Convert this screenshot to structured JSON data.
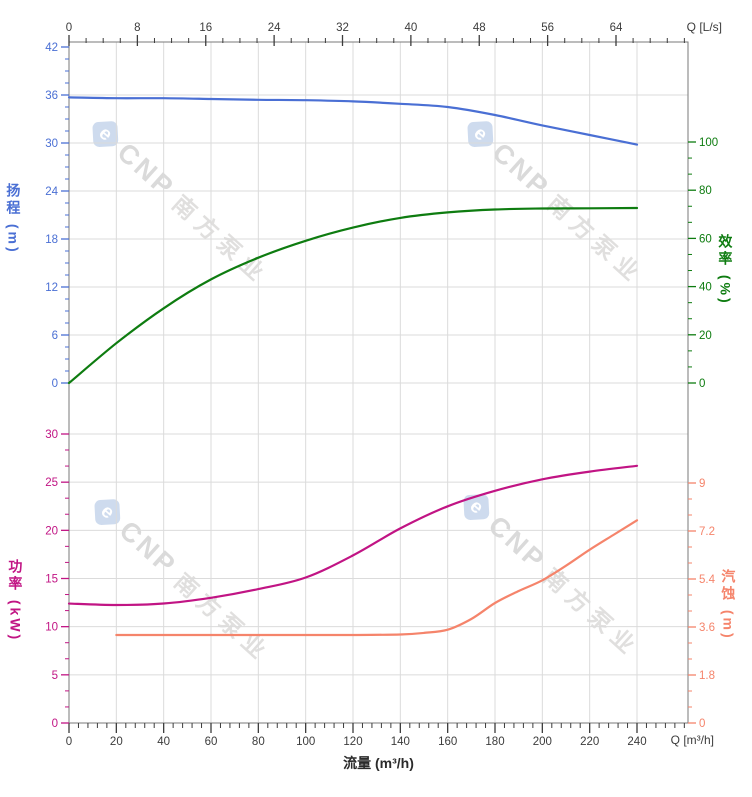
{
  "watermark": {
    "logo_char": "e",
    "brand": "CNP",
    "company": "南方泵业"
  },
  "chart_data": [
    {
      "type": "line",
      "title": "",
      "x_top": {
        "label": "Q [L/s]",
        "ticks": [
          0,
          8,
          16,
          24,
          32,
          40,
          48,
          56,
          64
        ],
        "minor_step": 2,
        "range": [
          0,
          72.4
        ]
      },
      "x_bottom": {
        "label": "Q [m³/h]",
        "axis_title": "流量 (m³/h)",
        "ticks": [
          0,
          20,
          40,
          60,
          80,
          100,
          120,
          140,
          160,
          180,
          200,
          220,
          240
        ],
        "minor_step": 4,
        "range": [
          0,
          261.5
        ]
      },
      "y_left": {
        "label": "扬程 (m)",
        "color": "#4a6fd4",
        "ticks": [
          0,
          6,
          12,
          18,
          24,
          30,
          36,
          42
        ],
        "minor_step": 1.5,
        "range": [
          0,
          42
        ]
      },
      "y_right": {
        "label": "效率 (%)",
        "color": "#0e7c10",
        "ticks": [
          0,
          20,
          40,
          60,
          80,
          100
        ],
        "minor_step": 6.667,
        "range": [
          0,
          100
        ]
      },
      "grid": true,
      "legend": "none",
      "series": [
        {
          "id": "head-curve",
          "name": "扬程",
          "axis": "left",
          "color": "#4a6fd4",
          "x": [
            0,
            20,
            40,
            60,
            80,
            100,
            120,
            140,
            160,
            180,
            200,
            220,
            240
          ],
          "y": [
            35.7,
            35.6,
            35.6,
            35.5,
            35.4,
            35.35,
            35.2,
            34.9,
            34.5,
            33.5,
            32.2,
            31.0,
            29.8
          ]
        },
        {
          "id": "efficiency-curve",
          "name": "效率",
          "axis": "right",
          "color": "#0e7c10",
          "x": [
            0,
            20,
            40,
            60,
            80,
            100,
            120,
            140,
            160,
            180,
            200,
            220,
            240
          ],
          "y": [
            0,
            16.5,
            31,
            43,
            52,
            59,
            64.5,
            68.5,
            70.8,
            72,
            72.4,
            72.5,
            72.6
          ]
        }
      ]
    },
    {
      "type": "line",
      "title": "",
      "y_left": {
        "label": "功率 (kW)",
        "color": "#c11484",
        "ticks": [
          0,
          5,
          10,
          15,
          20,
          25,
          30
        ],
        "minor_step": 1.667,
        "range": [
          0,
          30
        ]
      },
      "y_right": {
        "label": "汽蚀 (m)",
        "color": "#f5846b",
        "ticks": [
          0,
          1.8,
          3.6,
          5.4,
          7.2,
          9
        ],
        "minor_step": 0.6,
        "range": [
          0,
          9
        ]
      },
      "grid": true,
      "legend": "none",
      "series": [
        {
          "id": "power-curve",
          "name": "功率",
          "axis": "left",
          "color": "#c11484",
          "x": [
            0,
            20,
            40,
            60,
            80,
            100,
            120,
            140,
            160,
            180,
            200,
            220,
            240
          ],
          "y": [
            12.4,
            12.25,
            12.4,
            13.0,
            13.9,
            15.1,
            17.4,
            20.2,
            22.5,
            24.1,
            25.3,
            26.1,
            26.7
          ]
        },
        {
          "id": "npshr-curve",
          "name": "汽蚀",
          "axis": "right",
          "color": "#f5846b",
          "x": [
            20,
            40,
            60,
            80,
            100,
            120,
            140,
            150,
            160,
            170,
            180,
            190,
            200,
            210,
            220,
            230,
            240
          ],
          "y": [
            3.3,
            3.3,
            3.3,
            3.3,
            3.3,
            3.3,
            3.32,
            3.38,
            3.5,
            3.9,
            4.5,
            4.95,
            5.35,
            5.9,
            6.5,
            7.05,
            7.6
          ]
        }
      ]
    }
  ]
}
